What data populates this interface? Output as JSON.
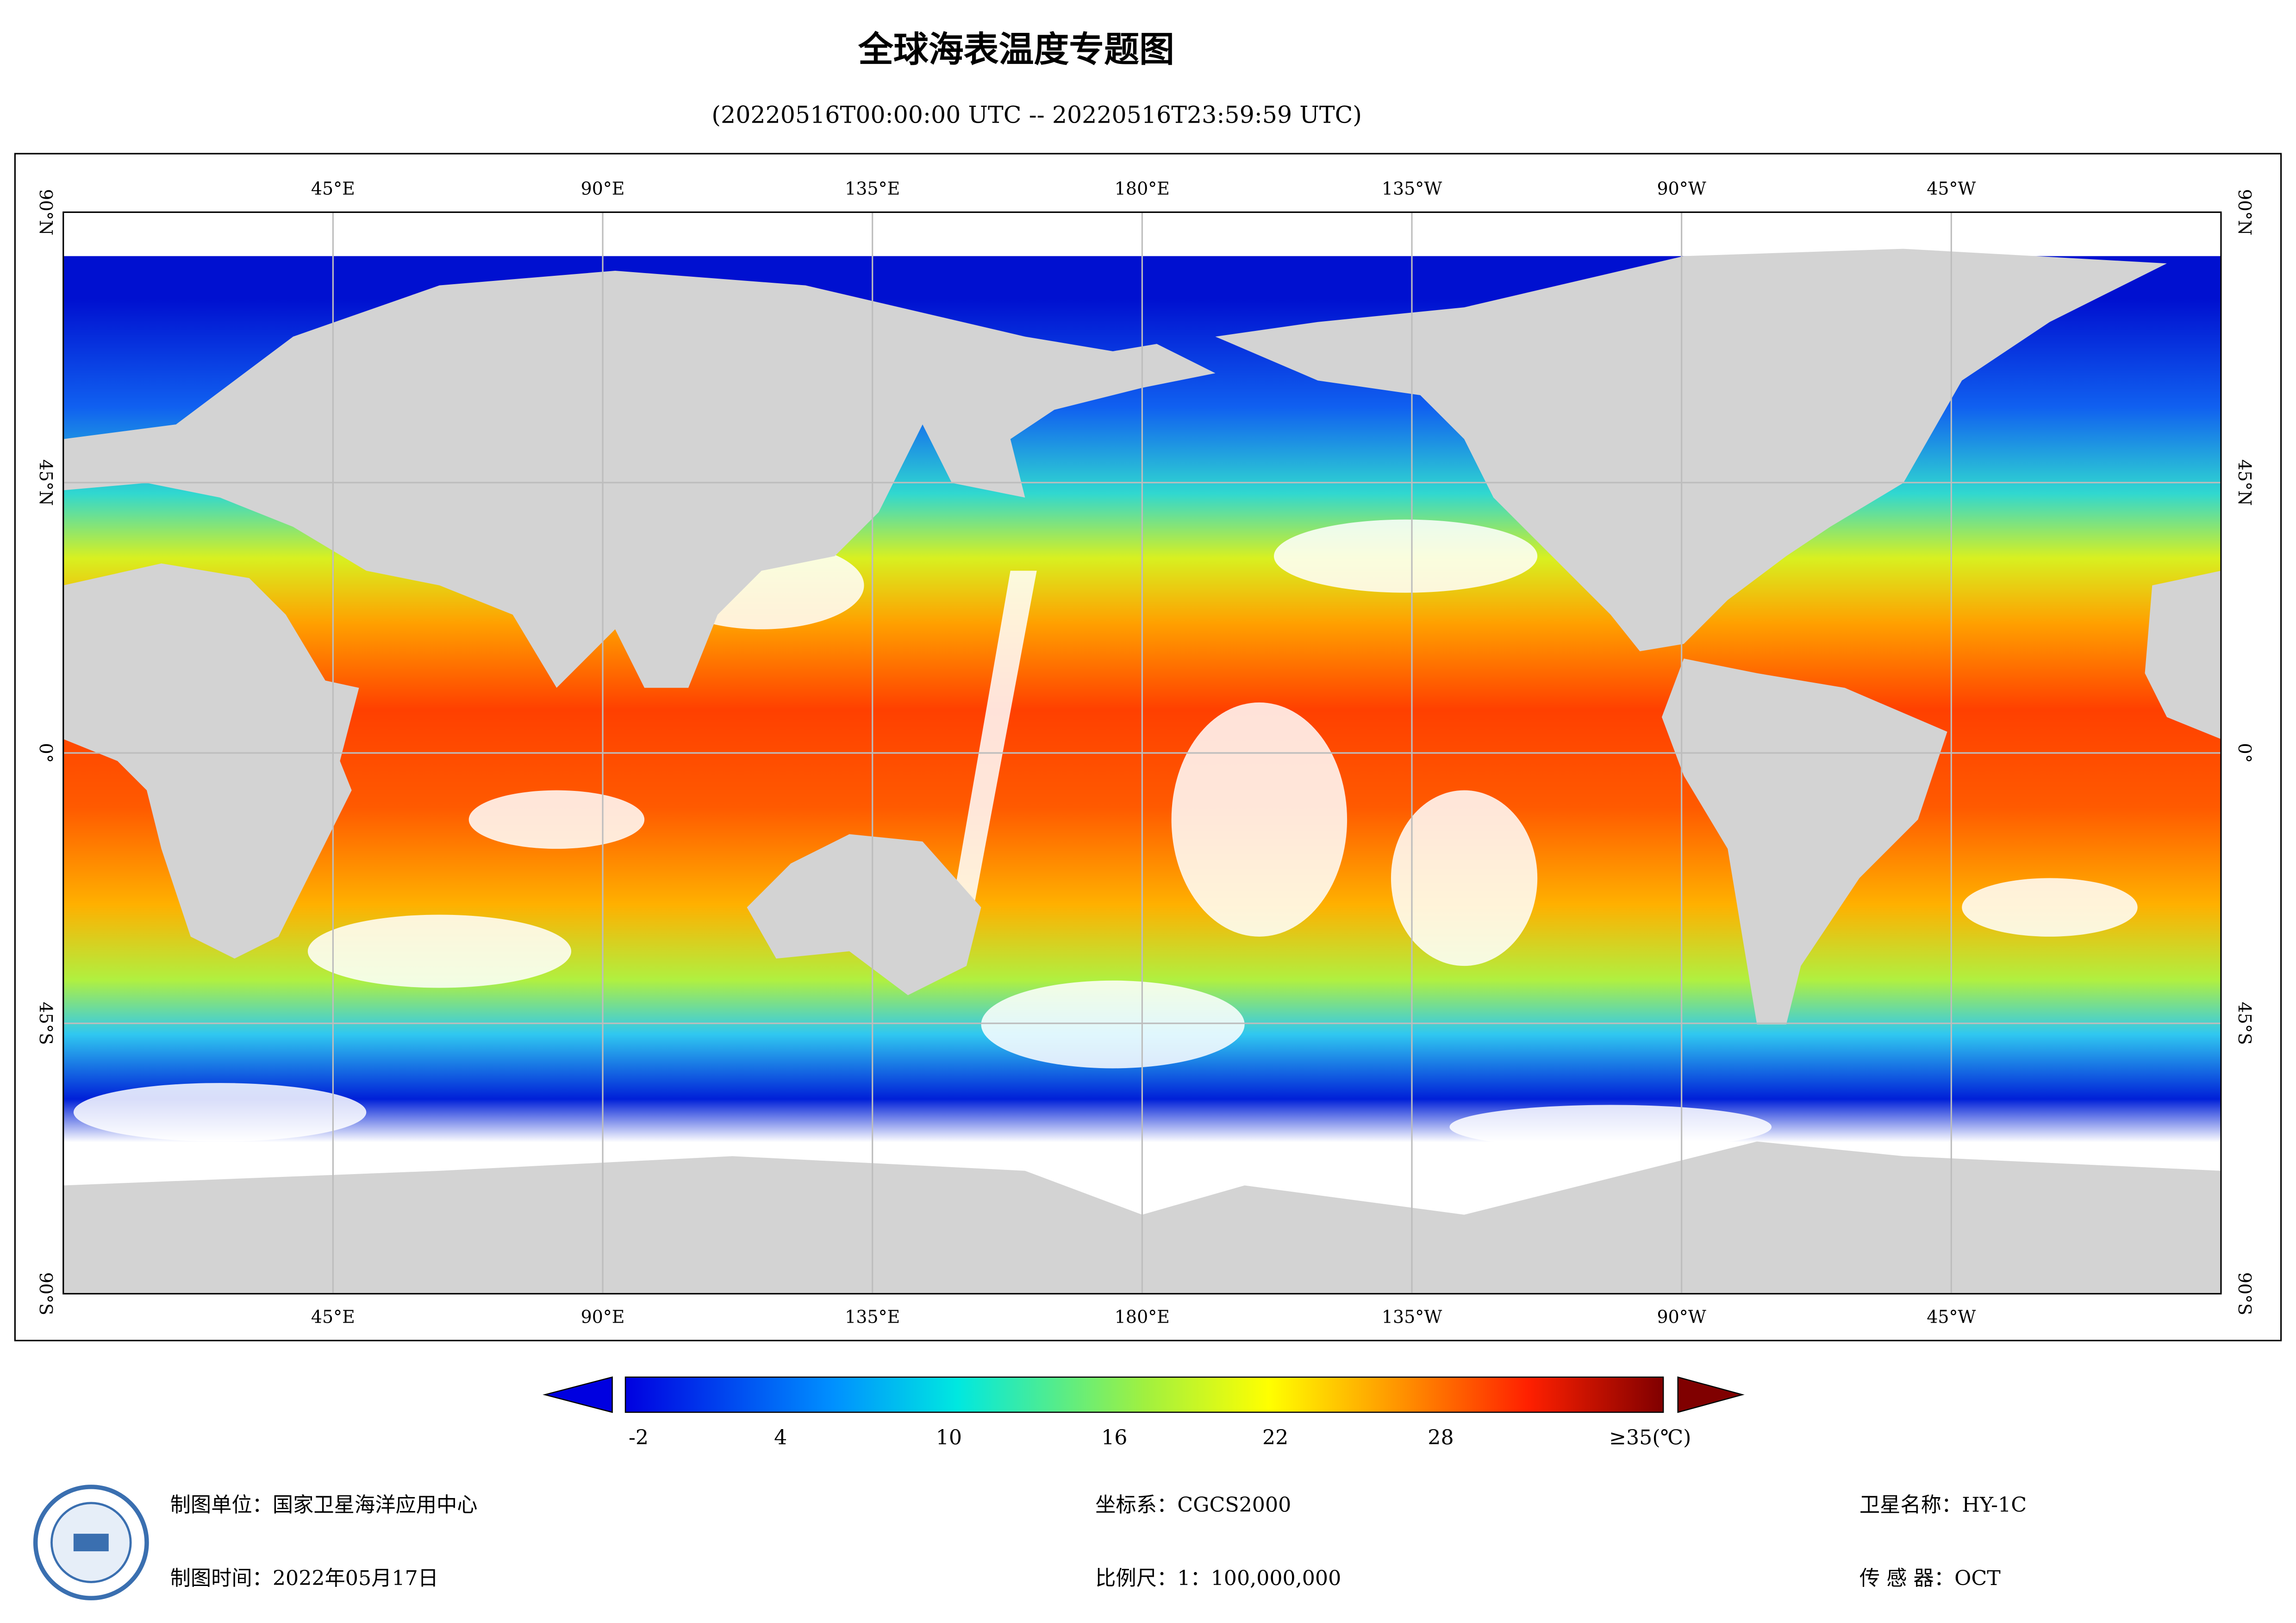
{
  "header": {
    "title": "全球海表温度专题图",
    "subtitle": "(20220516T00:00:00 UTC -- 20220516T23:59:59 UTC)"
  },
  "map": {
    "lon_labels": [
      "45°E",
      "90°E",
      "135°E",
      "180°E",
      "135°W",
      "90°W",
      "45°W"
    ],
    "lat_labels": [
      "90°N",
      "45°N",
      "0°",
      "45°S",
      "90°S"
    ]
  },
  "legend": {
    "labels": [
      "-2",
      "4",
      "10",
      "16",
      "22",
      "28",
      "≥35(℃)"
    ]
  },
  "footer": {
    "producer": "制图单位：国家卫星海洋应用中心",
    "date": "制图时间：2022年05月17日",
    "crs": "坐标系：CGCS2000",
    "scale": "比例尺：1：100,000,000",
    "satellite": "卫星名称：HY-1C",
    "sensor": "传 感 器：OCT"
  }
}
